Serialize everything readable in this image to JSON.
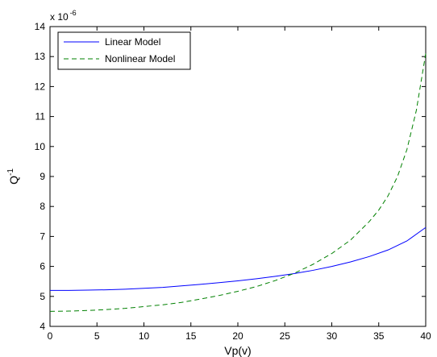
{
  "chart_data": {
    "type": "line",
    "xlabel": "Vp(v)",
    "ylabel": "Q",
    "ylabel_superscript": "-1",
    "y_multiplier_base": "x 10",
    "y_multiplier_exponent": "-6",
    "xlim": [
      0,
      40
    ],
    "ylim": [
      4,
      14
    ],
    "x_ticks": [
      0,
      5,
      10,
      15,
      20,
      25,
      30,
      35,
      40
    ],
    "y_ticks": [
      4,
      5,
      6,
      7,
      8,
      9,
      10,
      11,
      12,
      13,
      14
    ],
    "grid": false,
    "legend_position": "top-left",
    "series": [
      {
        "name": "Linear Model",
        "color": "#0000ff",
        "dash": "solid",
        "x": [
          0,
          2,
          4,
          6,
          8,
          10,
          12,
          14,
          16,
          18,
          20,
          22,
          24,
          26,
          28,
          30,
          32,
          34,
          36,
          38,
          40
        ],
        "y": [
          5.2,
          5.2,
          5.21,
          5.22,
          5.24,
          5.27,
          5.3,
          5.35,
          5.4,
          5.46,
          5.52,
          5.59,
          5.67,
          5.76,
          5.87,
          6.0,
          6.15,
          6.33,
          6.55,
          6.85,
          7.3
        ]
      },
      {
        "name": "Nonlinear Model",
        "color": "#008000",
        "dash": "dashed",
        "x": [
          0,
          2,
          4,
          6,
          8,
          10,
          12,
          14,
          16,
          18,
          20,
          22,
          24,
          26,
          28,
          30,
          32,
          34,
          35,
          36,
          37,
          38,
          39,
          40
        ],
        "y": [
          4.5,
          4.51,
          4.53,
          4.56,
          4.6,
          4.66,
          4.72,
          4.8,
          4.91,
          5.03,
          5.17,
          5.33,
          5.53,
          5.77,
          6.07,
          6.43,
          6.88,
          7.5,
          7.88,
          8.36,
          9.0,
          9.9,
          11.2,
          13.1
        ]
      }
    ]
  }
}
